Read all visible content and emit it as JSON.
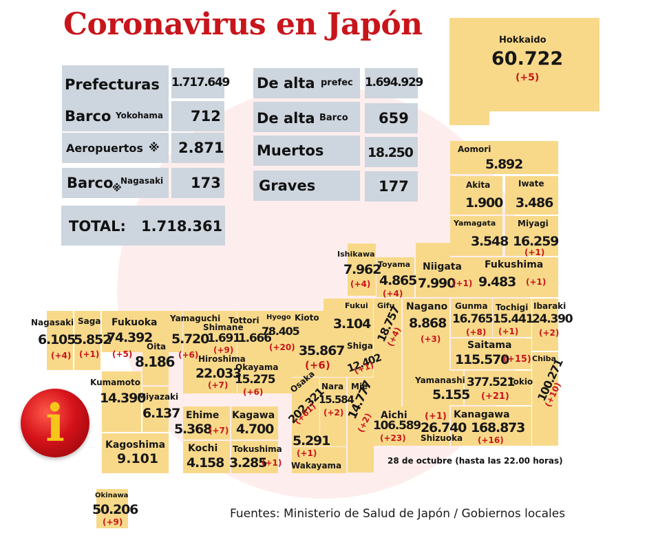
{
  "title": "Coronavirus en Japón",
  "summary": {
    "prefecturas": {
      "label": "Prefecturas",
      "value": "1.717.649"
    },
    "barco_yokohama": {
      "label": "Barco",
      "sub": "Yokohama",
      "value": "712"
    },
    "aeropuertos": {
      "label": "Aeropuertos",
      "mark": "※",
      "value": "2.871"
    },
    "barco_nagasaki": {
      "label": "Barco",
      "mark": "※",
      "sub": "Nagasaki",
      "value": "173"
    },
    "total": {
      "label": "TOTAL:",
      "value": "1.718.361"
    },
    "de_alta_prefec": {
      "label": "De alta",
      "sub": "prefec",
      "value": "1.694.929"
    },
    "de_alta_barco": {
      "label": "De alta",
      "sub": "Barco",
      "value": "659"
    },
    "muertos": {
      "label": "Muertos",
      "value": "18.250"
    },
    "graves": {
      "label": "Graves",
      "value": "177"
    }
  },
  "prefectures": {
    "hokkaido": {
      "name": "Hokkaido",
      "value": "60.722",
      "delta": "(+5)"
    },
    "aomori": {
      "name": "Aomori",
      "value": "5.892"
    },
    "akita": {
      "name": "Akita",
      "value": "1.900"
    },
    "iwate": {
      "name": "Iwate",
      "value": "3.486"
    },
    "yamagata": {
      "name": "Yamagata",
      "value": "3.548"
    },
    "miyagi": {
      "name": "Miyagi",
      "value": "16.259",
      "delta": "(+1)"
    },
    "ishikawa": {
      "name": "Ishikawa",
      "value": "7.962",
      "delta": "(+4)"
    },
    "toyama": {
      "name": "Toyama",
      "value": "4.865",
      "delta": "(+4)"
    },
    "niigata": {
      "name": "Niigata",
      "value": "7.990",
      "delta": "(+1)"
    },
    "fukushima": {
      "name": "Fukushima",
      "value": "9.483",
      "delta": "(+1)"
    },
    "fukui": {
      "name": "Fukui",
      "value": "3.104"
    },
    "gifu": {
      "name": "Gifu",
      "value": "18.757",
      "delta": "(+4)"
    },
    "nagano": {
      "name": "Nagano",
      "value": "8.868",
      "delta": "(+3)"
    },
    "gunma": {
      "name": "Gunma",
      "value": "16.765",
      "delta": "(+8)"
    },
    "tochigi": {
      "name": "Tochigi",
      "value": "15.441",
      "delta": "(+1)"
    },
    "ibaraki": {
      "name": "Ibaraki",
      "value": "24.390",
      "delta": "(+2)"
    },
    "saitama": {
      "name": "Saitama",
      "value": "115.570",
      "delta": "(+15)"
    },
    "chiba": {
      "name": "Chiba",
      "value": "100.271",
      "delta": "(+10)"
    },
    "tokio": {
      "name": "Tokio",
      "value": "377.521",
      "delta": "(+21)"
    },
    "yamanashi": {
      "name": "Yamanashi",
      "value": "5.155"
    },
    "kanagawa": {
      "name": "Kanagawa",
      "value": "168.873",
      "delta": "(+16)"
    },
    "shizuoka": {
      "name": "Shizuoka",
      "value": "26.740",
      "delta": "(+1)"
    },
    "aichi": {
      "name": "Aichi",
      "value": "106.589",
      "delta": "(+23)"
    },
    "mie": {
      "name": "Mie",
      "value": "14.777",
      "delta": "(+2)"
    },
    "shiga": {
      "name": "Shiga",
      "value": "12.402",
      "delta": "(+1)"
    },
    "kioto": {
      "name": "Kioto",
      "value": "35.867",
      "delta": "(+6)"
    },
    "nara": {
      "name": "Nara",
      "value": "15.584",
      "delta": "(+2)"
    },
    "osaka": {
      "name": "Osaka",
      "value": "202.321",
      "delta": "(+61)"
    },
    "wakayama": {
      "name": "Wakayama",
      "value": "5.291",
      "delta": "(+1)"
    },
    "hyogo": {
      "name": "Hyogo",
      "value": "78.405",
      "delta": "(+20)"
    },
    "tottori": {
      "name": "Tottori",
      "value": "1.666"
    },
    "shimane": {
      "name": "Shimane",
      "value": "1.691",
      "delta": "(+9)"
    },
    "okayama": {
      "name": "Okayama",
      "value": "15.275",
      "delta": "(+6)"
    },
    "hiroshima": {
      "name": "Hiroshima",
      "value": "22.033",
      "delta": "(+7)"
    },
    "yamaguchi": {
      "name": "Yamaguchi",
      "value": "5.720",
      "delta": "(+6)"
    },
    "ehime": {
      "name": "Ehime",
      "value": "5.368",
      "delta": "(+7)"
    },
    "kagawa": {
      "name": "Kagawa",
      "value": "4.700"
    },
    "kochi": {
      "name": "Kochi",
      "value": "4.158"
    },
    "tokushima": {
      "name": "Tokushima",
      "value": "3.285",
      "delta": "(+1)"
    },
    "fukuoka": {
      "name": "Fukuoka",
      "value": "74.392",
      "delta": "(+5)"
    },
    "saga": {
      "name": "Saga",
      "value": "5.852",
      "delta": "(+1)"
    },
    "nagasaki": {
      "name": "Nagasaki",
      "value": "6.105",
      "delta": "(+4)"
    },
    "oita": {
      "name": "Oita",
      "value": "8.186"
    },
    "kumamoto": {
      "name": "Kumamoto",
      "value": "14.390"
    },
    "miyazaki": {
      "name": "Miyazaki",
      "value": "6.137"
    },
    "kagoshima": {
      "name": "Kagoshima",
      "value": "9.101"
    },
    "okinawa": {
      "name": "Okinawa",
      "value": "50.206",
      "delta": "(+9)"
    }
  },
  "date_note": "28 de octubre  (hasta las  22.00 horas)",
  "source": "Fuentes: Ministerio de Salud de Japón / Gobiernos locales",
  "info_icon": {
    "glyph": "i",
    "icon": "info-icon"
  },
  "colors": {
    "title": "#c8151b",
    "tile": "#f8d98a",
    "summary_box": "#cdd5de",
    "delta": "#c8151b"
  }
}
